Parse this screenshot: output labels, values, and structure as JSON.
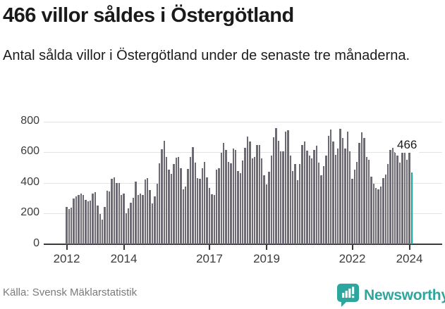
{
  "header": {
    "title": "466 villor såldes i Östergötland",
    "subtitle": "Antal sålda villor i Östergötland under de senaste tre månaderna."
  },
  "chart_data": {
    "type": "bar",
    "title": "466 villor såldes i Östergötland",
    "xlabel": "",
    "ylabel": "",
    "ylim": [
      0,
      800
    ],
    "y_ticks": [
      0,
      200,
      400,
      600,
      800
    ],
    "grid": true,
    "start_year": 2012,
    "start_month": 1,
    "x_tick_years": [
      2012,
      2014,
      2017,
      2019,
      2022,
      2024
    ],
    "x_tick_labels": [
      "2012",
      "2014",
      "2017",
      "2019",
      "2022",
      "2024"
    ],
    "values": [
      245,
      230,
      240,
      298,
      313,
      323,
      330,
      320,
      290,
      278,
      286,
      330,
      338,
      253,
      197,
      160,
      243,
      350,
      342,
      427,
      434,
      401,
      398,
      320,
      330,
      200,
      235,
      270,
      305,
      410,
      322,
      329,
      319,
      421,
      430,
      352,
      266,
      311,
      394,
      527,
      620,
      673,
      571,
      488,
      459,
      522,
      563,
      570,
      494,
      358,
      377,
      489,
      570,
      635,
      532,
      433,
      426,
      494,
      539,
      436,
      365,
      327,
      323,
      486,
      494,
      595,
      660,
      615,
      535,
      527,
      623,
      615,
      479,
      464,
      547,
      630,
      701,
      668,
      562,
      570,
      645,
      645,
      559,
      448,
      388,
      474,
      577,
      698,
      759,
      676,
      607,
      607,
      736,
      744,
      577,
      479,
      521,
      418,
      524,
      645,
      668,
      611,
      577,
      562,
      615,
      641,
      532,
      448,
      509,
      577,
      706,
      747,
      668,
      585,
      623,
      751,
      691,
      623,
      736,
      607,
      426,
      486,
      539,
      660,
      732,
      691,
      570,
      550,
      441,
      395,
      368,
      360,
      377,
      433,
      456,
      524,
      615,
      630,
      600,
      577,
      532,
      653,
      638,
      550,
      610,
      466
    ],
    "highlight_last_bar": true,
    "annotation": {
      "text": "466",
      "value": 466
    },
    "bar_color": "#6d6a74",
    "highlight_color": "#0ea79d",
    "gridline_color": "#e2e2e2",
    "axis_color": "#3a3a3a"
  },
  "footer": {
    "source": "Källa: Svensk Mäklarstatistik",
    "brand": "Newsworthy",
    "brand_color": "#2da79e"
  }
}
